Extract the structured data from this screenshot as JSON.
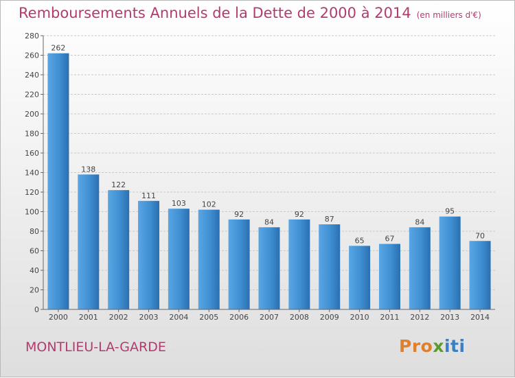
{
  "title": "Remboursements Annuels de la Dette de 2000 à 2014",
  "unit": "(en milliers d'€)",
  "city": "MONTLIEU-LA-GARDE",
  "logo": {
    "part1": "Pro",
    "part2": "x",
    "part3": "iti"
  },
  "colors": {
    "bar": "#3d8fd3",
    "title": "#b23a6f"
  },
  "chart_data": {
    "type": "bar",
    "categories": [
      "2000",
      "2001",
      "2002",
      "2003",
      "2004",
      "2005",
      "2006",
      "2007",
      "2008",
      "2009",
      "2010",
      "2011",
      "2012",
      "2013",
      "2014"
    ],
    "values": [
      262,
      138,
      122,
      111,
      103,
      102,
      92,
      84,
      92,
      87,
      65,
      67,
      84,
      95,
      70
    ],
    "ylim": [
      0,
      280
    ],
    "yticks": [
      0,
      20,
      40,
      60,
      80,
      100,
      120,
      140,
      160,
      180,
      200,
      220,
      240,
      260,
      280
    ],
    "grid": true,
    "xlabel": "",
    "ylabel": ""
  }
}
